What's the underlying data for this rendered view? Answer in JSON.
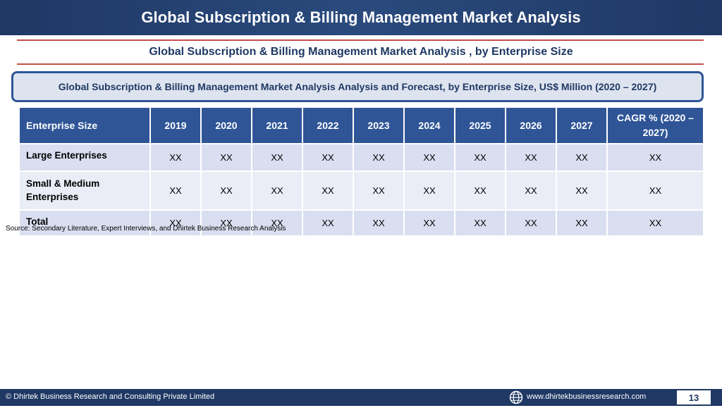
{
  "title": "Global Subscription & Billing Management Market Analysis",
  "subtitle": "Global Subscription & Billing Management Market Analysis , by Enterprise Size",
  "caption": "Global Subscription & Billing Management Market Analysis  Analysis and Forecast, by Enterprise Size, US$ Million (2020 – 2027)",
  "table": {
    "headers": [
      "Enterprise Size",
      "2019",
      "2020",
      "2021",
      "2022",
      "2023",
      "2024",
      "2025",
      "2026",
      "2027",
      "CAGR % (2020 – 2027)"
    ],
    "rows": [
      {
        "label": "Large Enterprises",
        "values": [
          "XX",
          "XX",
          "XX",
          "XX",
          "XX",
          "XX",
          "XX",
          "XX",
          "XX",
          "XX"
        ]
      },
      {
        "label": "Small & Medium Enterprises",
        "values": [
          "XX",
          "XX",
          "XX",
          "XX",
          "XX",
          "XX",
          "XX",
          "XX",
          "XX",
          "XX"
        ]
      },
      {
        "label": "Total",
        "values": [
          "XX",
          "XX",
          "XX",
          "XX",
          "XX",
          "XX",
          "XX",
          "XX",
          "XX",
          "XX"
        ]
      }
    ]
  },
  "source": "Source: Secondary Literature, Expert Interviews, and Dhirtek Business Research Analysis",
  "footer": {
    "copyright": "© Dhirtek Business Research and Consulting Private Limited",
    "url": "www.dhirtekbusinessresearch.com",
    "page_number": "13",
    "icon": "globe-icon"
  },
  "colors": {
    "header_blue": "#2f5597",
    "dark_navy": "#1f3864",
    "accent_red": "#c0504d",
    "row_light": "#d9dff0",
    "row_lighter": "#eaedf6"
  }
}
